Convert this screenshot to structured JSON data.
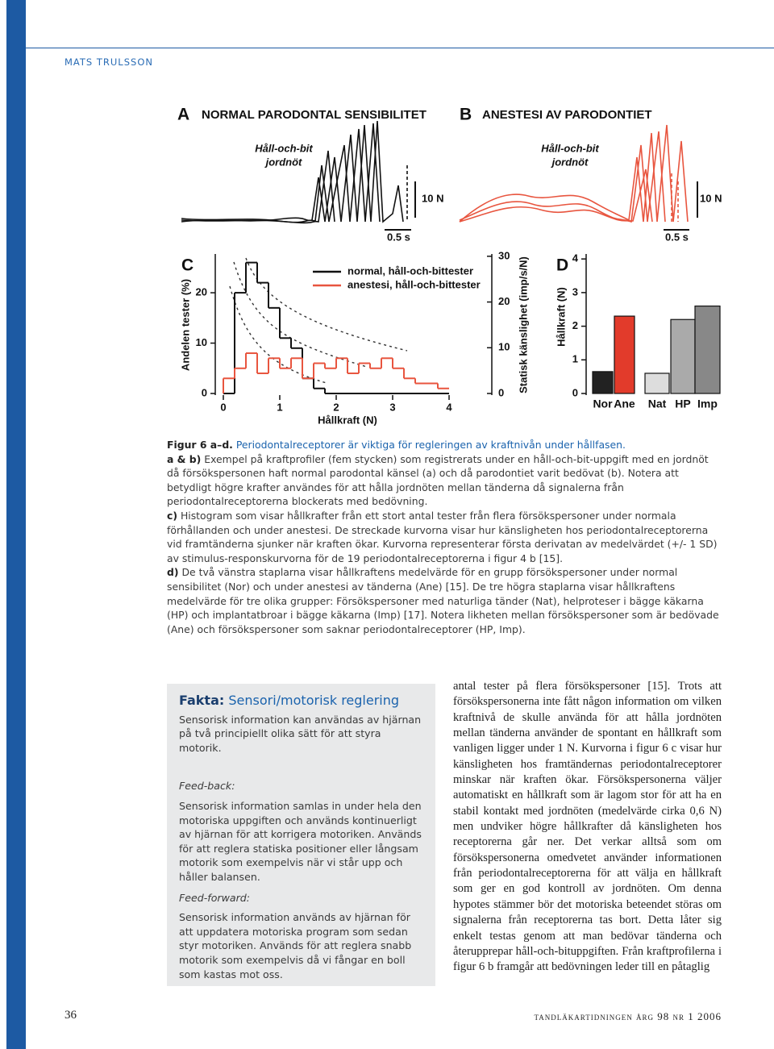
{
  "header": {
    "author": "MATS TRULSSON"
  },
  "figure": {
    "panel_a": {
      "letter": "A",
      "title": "NORMAL PARODONTAL SENSIBILITET",
      "label_line1": "Håll-och-bit",
      "label_line2": "jordnöt",
      "force_scale": "10 N",
      "time_scale": "0.5 s"
    },
    "panel_b": {
      "letter": "B",
      "title": "ANESTESI AV PARODONTIET",
      "label_line1": "Håll-och-bit",
      "label_line2": "jordnöt",
      "force_scale": "10 N",
      "time_scale": "0.5 s"
    }
  },
  "chart_data": [
    {
      "type": "histogram",
      "letter": "C",
      "y_label": "Andelen tester (%)",
      "x_label": "Hållkraft (N)",
      "y2_label": "Statisk känslighet (imp/s/N)",
      "bins": [
        0,
        0.2,
        0.4,
        0.6,
        0.8,
        1.0,
        1.2,
        1.4,
        1.6,
        1.8,
        2.0,
        2.2,
        2.4,
        2.6,
        2.8,
        3.0,
        3.2,
        3.4,
        3.6,
        3.8,
        4.0
      ],
      "series": [
        {
          "name": "normal, håll-och-bittester",
          "color": "#111111",
          "values": [
            0,
            20,
            26,
            22,
            17,
            11,
            9,
            3,
            1,
            0,
            0,
            0,
            0,
            0,
            0,
            0,
            0,
            0,
            0,
            0
          ]
        },
        {
          "name": "anestesi, håll-och-bittester",
          "color": "#e8553f",
          "values": [
            3,
            5,
            8,
            4,
            7,
            5,
            7,
            3,
            6,
            5,
            7,
            4,
            6,
            5,
            7,
            5,
            3,
            2,
            2,
            1
          ]
        }
      ],
      "xlim": [
        0,
        4.3
      ],
      "xticks": [
        0,
        1,
        2,
        3,
        4
      ],
      "ylim": [
        0,
        27.7
      ],
      "yticks": [
        0,
        10,
        20
      ],
      "y2lim": [
        0,
        30.5
      ],
      "y2ticks": [
        0,
        10,
        20,
        30
      ]
    },
    {
      "type": "bar",
      "letter": "D",
      "y_label": "Hållkraft (N)",
      "categories": [
        "Nor",
        "Ane",
        "Nat",
        "HP",
        "Imp"
      ],
      "values": [
        0.65,
        2.3,
        0.6,
        2.2,
        2.6
      ],
      "colors": [
        "#222222",
        "#e23b2b",
        "#dddddd",
        "#aaaaaa",
        "#888888"
      ],
      "ylim": [
        0,
        4.1
      ],
      "yticks": [
        0,
        1,
        2,
        3,
        4
      ]
    }
  ],
  "caption": {
    "paragraphs": [
      {
        "label": "Figur 6 a–d.",
        "text": "Periodontalreceptorer är viktiga för regleringen av kraftnivån under hållfasen."
      },
      {
        "label": "a & b)",
        "text": "Exempel på kraftprofiler (fem stycken) som registrerats under en håll-och-bit-uppgift med en jordnöt då försökspersonen haft normal parodontal känsel (a) och då parodontiet varit bedövat (b). Notera att betydligt högre krafter användes för att hålla jordnöten mellan tänderna då signalerna från periodontalreceptorerna blockerats med bedövning."
      },
      {
        "label": "c)",
        "text": "Histogram som visar hållkrafter från ett stort antal tester från flera försökspersoner under normala förhållanden och under anestesi. De streckade kurvorna visar hur känsligheten hos periodontalreceptorerna vid framtänderna sjunker när kraften ökar. Kurvorna representerar första derivatan av medelvärdet (+/- 1 SD) av stimulus-responskurvorna för de 19 periodontalreceptorerna i figur 4 b [15]."
      },
      {
        "label": "d)",
        "text": "De två vänstra staplarna visar hållkraftens medelvärde för en grupp försökspersoner under normal sensibilitet (Nor) och under anestesi av tänderna (Ane) [15]. De tre högra staplarna visar hållkraftens medelvärde för tre olika grupper: Försökspersoner med naturliga tänder (Nat), helproteser i bägge käkarna (HP) och implantatbroar i bägge käkarna (Imp) [17]. Notera likheten mellan försökspersoner som är bedövade (Ane) och försökspersoner som saknar periodontalreceptorer (HP, Imp)."
      }
    ]
  },
  "fact_box": {
    "title_label": "Fakta:",
    "title": "Sensori/motorisk reglering",
    "intro": "Sensorisk information kan användas av hjärnan på två principiellt olika sätt för att styra motorik.",
    "feedback_heading": "Feed-back:",
    "feedback_text": "Sensorisk information samlas in under hela den motoriska uppgiften och används kontinuerligt av hjärnan för att korrigera motoriken. Används för att reglera statiska positioner eller långsam motorik som exempelvis när vi står upp och håller balansen.",
    "feedforward_heading": "Feed-forward:",
    "feedforward_text": "Sensorisk information används av hjärnan för att uppdatera motoriska program som sedan styr motoriken. Används för att reglera snabb motorik som exempelvis då vi fångar en boll som kastas mot oss."
  },
  "body": {
    "text": "antal tester på flera försökspersoner [15]. Trots att försökspersonerna inte fått någon information om vilken kraftnivå de skulle använda för att hålla jordnöten mellan tänderna använder de spontant en hållkraft som vanligen ligger under 1 N. Kurvorna i figur 6 c visar hur känsligheten hos framtändernas periodontalreceptorer minskar när kraften ökar. Försökspersonerna väljer automatiskt en hållkraft som är lagom stor för att ha en stabil kontakt med jordnöten (medelvärde cirka 0,6 N) men undviker högre hållkrafter då känsligheten hos receptorerna går ner. Det verkar alltså som om försökspersonerna omedvetet använder informationen från periodontalreceptorerna för att välja en hållkraft som ger en god kontroll av jordnöten. Om denna hypotes stämmer bör det motoriska beteendet störas om signalerna från receptorerna tas bort. Detta låter sig enkelt testas genom att man bedövar tänderna och återupprepar håll-och-bituppgiften. Från kraftprofilerna i figur 6 b framgår att bedövningen leder till en påtaglig"
  },
  "footer": {
    "page_number": "36",
    "journal": "tandläkartidningen årg 98 nr 1 2006"
  }
}
